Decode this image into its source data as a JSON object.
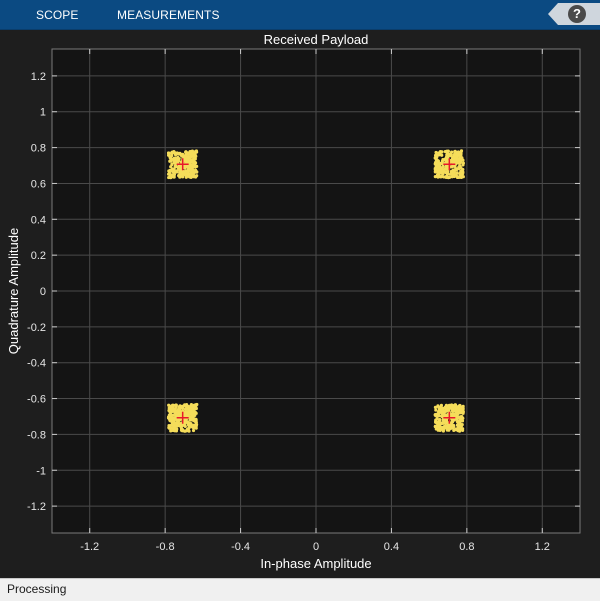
{
  "toolbar": {
    "tabs": [
      {
        "label": "SCOPE"
      },
      {
        "label": "MEASUREMENTS"
      }
    ],
    "help_label": "?"
  },
  "colors": {
    "toolbar_bg": "#0b4a82",
    "plot_bg": "#141414",
    "grid": "#4a4a4a",
    "points": "#f5dd5a",
    "reference_marker": "#e8182a"
  },
  "chart_data": {
    "type": "scatter",
    "title": "Received Payload",
    "xlabel": "In-phase Amplitude",
    "ylabel": "Quadrature Amplitude",
    "xlim": [
      -1.4,
      1.4
    ],
    "ylim": [
      -1.35,
      1.35
    ],
    "xticks": [
      -1.2,
      -0.8,
      -0.4,
      0,
      0.4,
      0.8,
      1.2
    ],
    "xtick_labels": [
      "-1.2",
      "-0.8",
      "-0.4",
      "0",
      "0.4",
      "0.8",
      "1.2"
    ],
    "yticks": [
      1.2,
      1,
      0.8,
      0.6,
      0.4,
      0.2,
      0,
      -0.2,
      -0.4,
      -0.6,
      -0.8,
      -1,
      -1.2
    ],
    "ytick_labels": [
      "1.2",
      "1",
      "0.8",
      "0.6",
      "0.4",
      "0.2",
      "0",
      "-0.2",
      "-0.4",
      "-0.6",
      "-0.8",
      "-1",
      "-1.2"
    ],
    "grid": true,
    "series": [
      {
        "marker": "dot",
        "cluster_centers": [
          [
            -0.707,
            0.707
          ],
          [
            0.707,
            0.707
          ],
          [
            -0.707,
            -0.707
          ],
          [
            0.707,
            -0.707
          ]
        ],
        "cluster_half_spread": 0.075
      },
      {
        "marker": "plus",
        "points": [
          [
            -0.707,
            0.707
          ],
          [
            0.707,
            0.707
          ],
          [
            -0.707,
            -0.707
          ],
          [
            0.707,
            -0.707
          ]
        ]
      }
    ]
  },
  "status": {
    "text": "Processing"
  }
}
